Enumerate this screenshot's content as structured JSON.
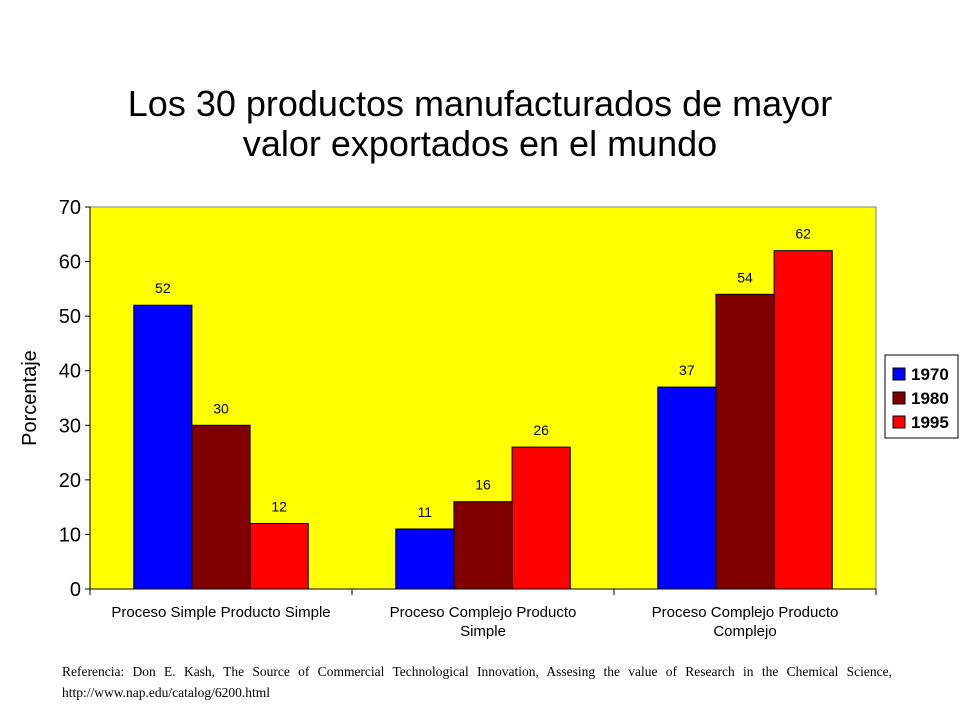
{
  "title_lines": [
    "Los 30 productos manufacturados de mayor",
    "valor exportados en el mundo"
  ],
  "reference": "Referencia: Don E. Kash, The Source of Commercial Technological Innovation, Assesing the value of Research in the Chemical Science, http://www.nap.edu/catalog/6200.html",
  "colors": {
    "plot_background": "#ffff00",
    "series_1970": "#0000ff",
    "series_1980": "#800000",
    "series_1995": "#ff0000"
  },
  "chart_data": {
    "type": "bar",
    "title": "Los 30 productos manufacturados de mayor valor exportados en el mundo",
    "xlabel": "",
    "ylabel": "Porcentaje",
    "ylim": [
      0,
      70
    ],
    "yticks": [
      0,
      10,
      20,
      30,
      40,
      50,
      60,
      70
    ],
    "categories": [
      [
        "Proceso Simple Producto Simple"
      ],
      [
        "Proceso Complejo Producto",
        "Simple"
      ],
      [
        "Proceso Complejo Producto",
        "Complejo"
      ]
    ],
    "series": [
      {
        "name": "1970",
        "values": [
          52,
          11,
          37
        ],
        "color": "#0000ff"
      },
      {
        "name": "1980",
        "values": [
          30,
          16,
          54
        ],
        "color": "#800000"
      },
      {
        "name": "1995",
        "values": [
          12,
          26,
          62
        ],
        "color": "#ff0000"
      }
    ],
    "legend_position": "right",
    "grid": false,
    "data_labels": true
  }
}
